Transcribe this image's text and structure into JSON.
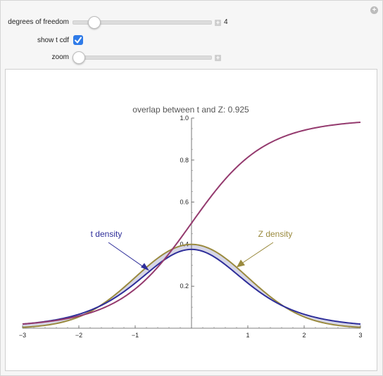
{
  "controls": {
    "dof": {
      "label": "degrees of freedom",
      "value": "4",
      "fraction": 0.12
    },
    "show_cdf": {
      "label": "show t cdf",
      "checked": true
    },
    "zoom": {
      "label": "zoom",
      "fraction": 0.0
    }
  },
  "chart_data": {
    "type": "line",
    "title": "overlap between t and Z: 0.925",
    "xlim": [
      -3,
      3
    ],
    "ylim": [
      0,
      1.0
    ],
    "x_ticks": [
      "−3",
      "−2",
      "−1",
      "1",
      "2",
      "3"
    ],
    "y_ticks": [
      "0.2",
      "0.4",
      "0.6",
      "0.8",
      "1.0"
    ],
    "series": [
      {
        "name": "t density",
        "color": "#2e2e9a",
        "dof": 4
      },
      {
        "name": "Z density",
        "color": "#9a8a3e"
      },
      {
        "name": "",
        "color": "#943a6e",
        "kind": "t cdf",
        "dof": 4
      }
    ],
    "overlap_fill": "#d6d6e6",
    "annotations": {
      "t_label": "t density",
      "z_label": "Z density"
    }
  }
}
